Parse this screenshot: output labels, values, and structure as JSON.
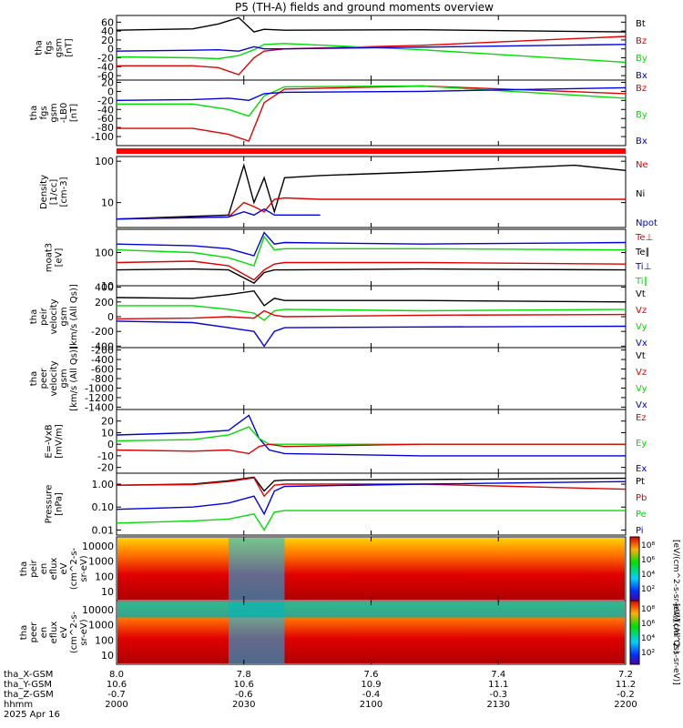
{
  "title": "P5 (TH-A) fields and ground moments overview",
  "colors": {
    "black": "#000000",
    "red": "#e00000",
    "green": "#00dd00",
    "blue": "#0000e0"
  },
  "chart_data": [
    {
      "type": "line",
      "ylabel": [
        "tha",
        "fgs",
        "gsm",
        "[nT]"
      ],
      "yticks": [
        "60",
        "40",
        "20",
        "0",
        "-20",
        "-40",
        "-60"
      ],
      "ylim": [
        -70,
        75
      ],
      "legend": [
        {
          "name": "Bt",
          "color": "#000000"
        },
        {
          "name": "Bz",
          "color": "#e00000"
        },
        {
          "name": "By",
          "color": "#00dd00"
        },
        {
          "name": "Bx",
          "color": "#0000e0"
        }
      ],
      "series": [
        {
          "name": "Bt",
          "color": "#000000",
          "x": [
            0,
            15,
            20,
            24,
            27,
            29,
            33,
            60,
            100
          ],
          "y": [
            42,
            45,
            56,
            70,
            38,
            44,
            42,
            43,
            38
          ]
        },
        {
          "name": "Bz",
          "color": "#e00000",
          "x": [
            0,
            15,
            20,
            24,
            27,
            29,
            33,
            60,
            100
          ],
          "y": [
            -38,
            -38,
            -42,
            -58,
            -20,
            -5,
            0,
            8,
            28
          ]
        },
        {
          "name": "By",
          "color": "#00dd00",
          "x": [
            0,
            15,
            20,
            24,
            27,
            29,
            33,
            60,
            100
          ],
          "y": [
            -18,
            -20,
            -22,
            -15,
            -2,
            10,
            12,
            -2,
            -30
          ]
        },
        {
          "name": "Bx",
          "color": "#0000e0",
          "x": [
            0,
            15,
            20,
            24,
            27,
            29,
            33,
            60,
            100
          ],
          "y": [
            -5,
            -3,
            -2,
            -5,
            5,
            0,
            0,
            4,
            10
          ]
        }
      ]
    },
    {
      "type": "line",
      "ylabel": [
        "tha",
        "fgs",
        "gsm",
        "-LB0",
        "[nT]"
      ],
      "yticks": [
        "20",
        "0",
        "-20",
        "-40",
        "-60",
        "-80",
        "-100"
      ],
      "ylim": [
        -120,
        25
      ],
      "legend": [
        {
          "name": "Bz",
          "color": "#e00000"
        },
        {
          "name": "By",
          "color": "#00dd00"
        },
        {
          "name": "Bx",
          "color": "#0000e0"
        }
      ],
      "series": [
        {
          "name": "Bz",
          "color": "#e00000",
          "x": [
            0,
            15,
            22,
            26,
            29,
            33,
            60,
            100
          ],
          "y": [
            -82,
            -82,
            -95,
            -110,
            -25,
            5,
            12,
            -5
          ]
        },
        {
          "name": "By",
          "color": "#00dd00",
          "x": [
            0,
            15,
            22,
            26,
            29,
            33,
            60,
            100
          ],
          "y": [
            -28,
            -28,
            -40,
            -55,
            -10,
            10,
            12,
            -15
          ]
        },
        {
          "name": "Bx",
          "color": "#0000e0",
          "x": [
            0,
            15,
            22,
            26,
            29,
            33,
            60,
            100
          ],
          "y": [
            -20,
            -18,
            -15,
            -20,
            -5,
            -2,
            0,
            8
          ]
        }
      ]
    },
    {
      "type": "line",
      "log": true,
      "ylabel": [
        "Density",
        "[1/cc]",
        "[cm-3]"
      ],
      "yticks": [
        "100",
        "10"
      ],
      "ylim": [
        2.5,
        130
      ],
      "legend": [
        {
          "name": "Ne",
          "color": "#e00000"
        },
        {
          "name": "Ni",
          "color": "#000000"
        },
        {
          "name": "Npot",
          "color": "#0000e0"
        }
      ],
      "series": [
        {
          "name": "Ni",
          "color": "#000000",
          "x": [
            0,
            22,
            25,
            27,
            29,
            31,
            33,
            40,
            60,
            90,
            100
          ],
          "y": [
            4,
            5,
            80,
            10,
            40,
            6,
            40,
            45,
            55,
            80,
            60
          ]
        },
        {
          "name": "Ne",
          "color": "#e00000",
          "x": [
            0,
            22,
            25,
            27,
            29,
            31,
            33,
            40,
            60,
            100
          ],
          "y": [
            4,
            4.5,
            10,
            8,
            6,
            12,
            13,
            12,
            12,
            12
          ]
        },
        {
          "name": "Npot",
          "color": "#0000e0",
          "x": [
            0,
            22,
            25,
            27,
            29,
            31,
            33,
            36,
            40
          ],
          "y": [
            4,
            4.5,
            6,
            5,
            7,
            5,
            5,
            5,
            5
          ]
        }
      ]
    },
    {
      "type": "line",
      "log": true,
      "ylabel": [
        "moat3",
        "[eV]"
      ],
      "yticks": [
        "100",
        "10"
      ],
      "ylim": [
        10,
        500
      ],
      "legend": [
        {
          "name": "Te⊥",
          "color": "#e00000"
        },
        {
          "name": "Te∥",
          "color": "#000000"
        },
        {
          "name": "Ti⊥",
          "color": "#0000e0"
        },
        {
          "name": "Ti∥",
          "color": "#00dd00"
        }
      ],
      "series": [
        {
          "name": "Ti⊥",
          "color": "#0000e0",
          "x": [
            0,
            15,
            22,
            27,
            29,
            31,
            33,
            60,
            100
          ],
          "y": [
            180,
            160,
            130,
            80,
            400,
            180,
            200,
            180,
            200
          ]
        },
        {
          "name": "Ti∥",
          "color": "#00dd00",
          "x": [
            0,
            15,
            22,
            27,
            29,
            31,
            33,
            60,
            100
          ],
          "y": [
            120,
            100,
            70,
            40,
            300,
            120,
            130,
            130,
            120
          ]
        },
        {
          "name": "Te⊥",
          "color": "#e00000",
          "x": [
            0,
            15,
            22,
            27,
            29,
            31,
            33,
            60,
            100
          ],
          "y": [
            50,
            55,
            40,
            15,
            30,
            45,
            50,
            50,
            45
          ]
        },
        {
          "name": "Te∥",
          "color": "#000000",
          "x": [
            0,
            15,
            22,
            27,
            29,
            31,
            33,
            60,
            100
          ],
          "y": [
            30,
            32,
            30,
            12,
            25,
            30,
            30,
            32,
            30
          ]
        }
      ]
    },
    {
      "type": "line",
      "ylabel": [
        "tha",
        "peir",
        "velocity",
        "gsm",
        "[km/s (All Qs)]"
      ],
      "yticks": [
        "400",
        "200",
        "0",
        "-200",
        "-400"
      ],
      "ylim": [
        -420,
        420
      ],
      "legend": [
        {
          "name": "Vt",
          "color": "#000000"
        },
        {
          "name": "Vz",
          "color": "#e00000"
        },
        {
          "name": "Vy",
          "color": "#00dd00"
        },
        {
          "name": "Vx",
          "color": "#0000e0"
        }
      ],
      "series": [
        {
          "name": "Vt",
          "color": "#000000",
          "x": [
            0,
            15,
            22,
            27,
            29,
            31,
            33,
            60,
            100
          ],
          "y": [
            260,
            250,
            300,
            350,
            150,
            250,
            220,
            220,
            200
          ]
        },
        {
          "name": "Vy",
          "color": "#00dd00",
          "x": [
            0,
            15,
            22,
            27,
            29,
            31,
            33,
            60,
            100
          ],
          "y": [
            150,
            150,
            100,
            50,
            -50,
            80,
            100,
            80,
            100
          ]
        },
        {
          "name": "Vz",
          "color": "#e00000",
          "x": [
            0,
            15,
            22,
            27,
            29,
            31,
            33,
            60,
            100
          ],
          "y": [
            -30,
            -20,
            0,
            -20,
            80,
            20,
            0,
            20,
            30
          ]
        },
        {
          "name": "Vx",
          "color": "#0000e0",
          "x": [
            0,
            15,
            22,
            27,
            29,
            31,
            33,
            60,
            100
          ],
          "y": [
            -60,
            -80,
            -150,
            -200,
            -400,
            -200,
            -150,
            -140,
            -130
          ]
        }
      ]
    },
    {
      "type": "line",
      "ylabel": [
        "tha",
        "peer",
        "velocity",
        "gsm",
        "[km/s (All Qs)]"
      ],
      "yticks": [
        "-200",
        "-400",
        "-600",
        "-800",
        "-1000",
        "-1200",
        "-1400"
      ],
      "ylim": [
        -1450,
        -150
      ],
      "legend": [
        {
          "name": "Vt",
          "color": "#000000"
        },
        {
          "name": "Vz",
          "color": "#e00000"
        },
        {
          "name": "Vy",
          "color": "#00dd00"
        },
        {
          "name": "Vx",
          "color": "#0000e0"
        }
      ],
      "series": []
    },
    {
      "type": "line",
      "ylabel": [
        "E=-VxB",
        "[mV/m]"
      ],
      "yticks": [
        "20",
        "10",
        "0",
        "-10",
        "-20"
      ],
      "ylim": [
        -25,
        30
      ],
      "legend": [
        {
          "name": "Ez",
          "color": "#e00000"
        },
        {
          "name": "Ey",
          "color": "#00dd00"
        },
        {
          "name": "Ex",
          "color": "#0000e0"
        }
      ],
      "series": [
        {
          "name": "Ex",
          "color": "#0000e0",
          "x": [
            0,
            15,
            22,
            26,
            28,
            30,
            33,
            60,
            100
          ],
          "y": [
            8,
            10,
            12,
            25,
            5,
            -5,
            -8,
            -10,
            -10
          ]
        },
        {
          "name": "Ey",
          "color": "#00dd00",
          "x": [
            0,
            15,
            22,
            26,
            28,
            30,
            33,
            60,
            100
          ],
          "y": [
            3,
            4,
            8,
            15,
            5,
            0,
            0,
            0,
            0
          ]
        },
        {
          "name": "Ez",
          "color": "#e00000",
          "x": [
            0,
            15,
            22,
            26,
            28,
            30,
            33,
            60,
            100
          ],
          "y": [
            -5,
            -6,
            -5,
            -8,
            -2,
            0,
            -2,
            0,
            0
          ]
        }
      ]
    },
    {
      "type": "line",
      "log": true,
      "ylabel": [
        "Pressure",
        "[nPa]"
      ],
      "yticks": [
        "1.00",
        "0.10",
        "0.01"
      ],
      "ylim": [
        0.006,
        3
      ],
      "legend": [
        {
          "name": "Pt",
          "color": "#000000"
        },
        {
          "name": "Pb",
          "color": "#e00000"
        },
        {
          "name": "Pe",
          "color": "#00dd00"
        },
        {
          "name": "Pi",
          "color": "#0000e0"
        }
      ],
      "series": [
        {
          "name": "Pt",
          "color": "#000000",
          "x": [
            0,
            15,
            22,
            27,
            29,
            31,
            33,
            60,
            100
          ],
          "y": [
            0.9,
            1.0,
            1.4,
            2.0,
            0.5,
            1.4,
            1.5,
            1.6,
            1.8
          ]
        },
        {
          "name": "Pb",
          "color": "#e00000",
          "x": [
            0,
            15,
            22,
            27,
            29,
            31,
            33,
            60,
            100
          ],
          "y": [
            0.9,
            0.95,
            1.3,
            1.9,
            0.3,
            0.9,
            1.0,
            1.0,
            0.6
          ]
        },
        {
          "name": "Pi",
          "color": "#0000e0",
          "x": [
            0,
            15,
            22,
            27,
            29,
            31,
            33,
            60,
            100
          ],
          "y": [
            0.08,
            0.1,
            0.15,
            0.3,
            0.05,
            0.5,
            0.8,
            1.0,
            1.3
          ]
        },
        {
          "name": "Pe",
          "color": "#00dd00",
          "x": [
            0,
            15,
            22,
            27,
            29,
            31,
            33,
            60,
            100
          ],
          "y": [
            0.02,
            0.025,
            0.03,
            0.05,
            0.01,
            0.06,
            0.07,
            0.07,
            0.07
          ]
        }
      ]
    },
    {
      "type": "heatmap",
      "ylabel": [
        "tha",
        "peir",
        "en",
        "eflux",
        "eV",
        "(cm^2-s-",
        "sr-eV)"
      ],
      "yticks": [
        "10000",
        "1000",
        "100",
        "10"
      ],
      "colorbar_ticks": [
        "10⁸",
        "10⁶",
        "10⁴",
        "10²"
      ],
      "colorbar_label": "[eV/(cm^2-s-sr-eV)] (All Qs)"
    },
    {
      "type": "heatmap",
      "ylabel": [
        "tha",
        "peer",
        "en",
        "eflux",
        "eV",
        "(cm^2-s-",
        "sr-eV)"
      ],
      "yticks": [
        "10000",
        "1000",
        "100",
        "10"
      ],
      "colorbar_ticks": [
        "10⁸",
        "10⁶",
        "10⁴",
        "10²"
      ],
      "colorbar_label": "[eV/(cm^2-s-sr-eV)]"
    }
  ],
  "x_axis": {
    "row_labels": [
      "tha_X-GSM",
      "tha_Y-GSM",
      "tha_Z-GSM",
      "hhmm",
      "2025 Apr 16"
    ],
    "ticks": [
      {
        "rows": [
          "8.0",
          "10.6",
          "-0.7",
          "2000"
        ]
      },
      {
        "rows": [
          "7.8",
          "10.6",
          "-0.6",
          "2030"
        ]
      },
      {
        "rows": [
          "7.6",
          "10.9",
          "-0.4",
          "2100"
        ]
      },
      {
        "rows": [
          "7.4",
          "11.1",
          "-0.3",
          "2130"
        ]
      },
      {
        "rows": [
          "7.2",
          "11.2",
          "-0.2",
          "2200"
        ]
      }
    ]
  }
}
